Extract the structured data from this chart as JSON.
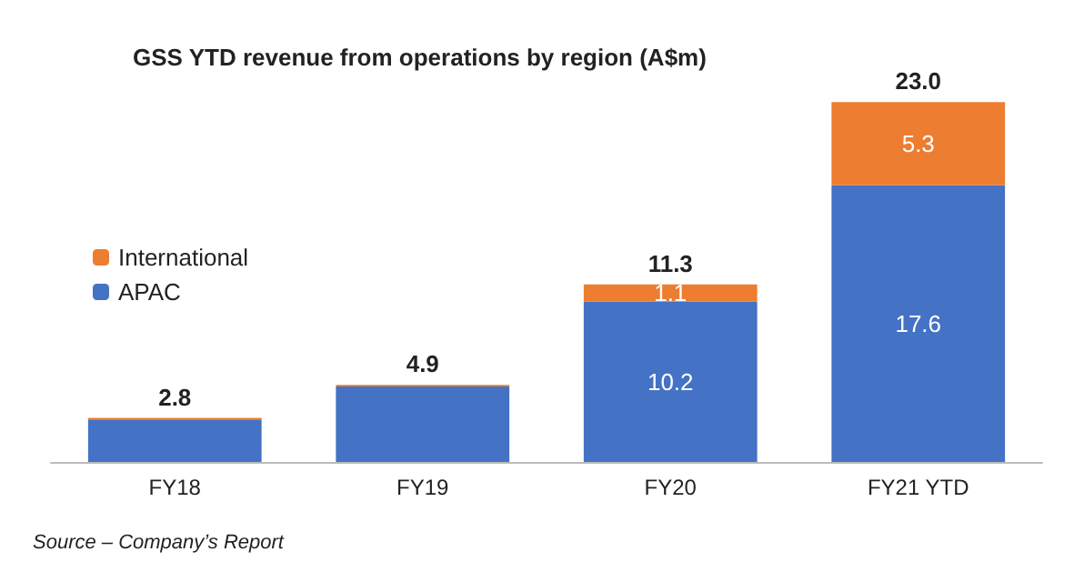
{
  "chart_data": {
    "type": "bar",
    "title": "GSS YTD revenue from operations by region (A$m)",
    "categories": [
      "FY18",
      "FY19",
      "FY20",
      "FY21 YTD"
    ],
    "stacked": true,
    "legend": "left",
    "series": [
      {
        "name": "APAC",
        "color": "#4472c4",
        "values": [
          2.7,
          4.8,
          10.2,
          17.6
        ],
        "value_labels": [
          null,
          null,
          "10.2",
          "17.6"
        ]
      },
      {
        "name": "International",
        "color": "#ed7d31",
        "values": [
          0.1,
          0.1,
          1.1,
          5.3
        ],
        "value_labels": [
          null,
          null,
          "1.1",
          "5.3"
        ]
      }
    ],
    "totals": [
      "2.8",
      "4.9",
      "11.3",
      "23.0"
    ],
    "annotations": [
      "Source – Company’s Report"
    ]
  }
}
